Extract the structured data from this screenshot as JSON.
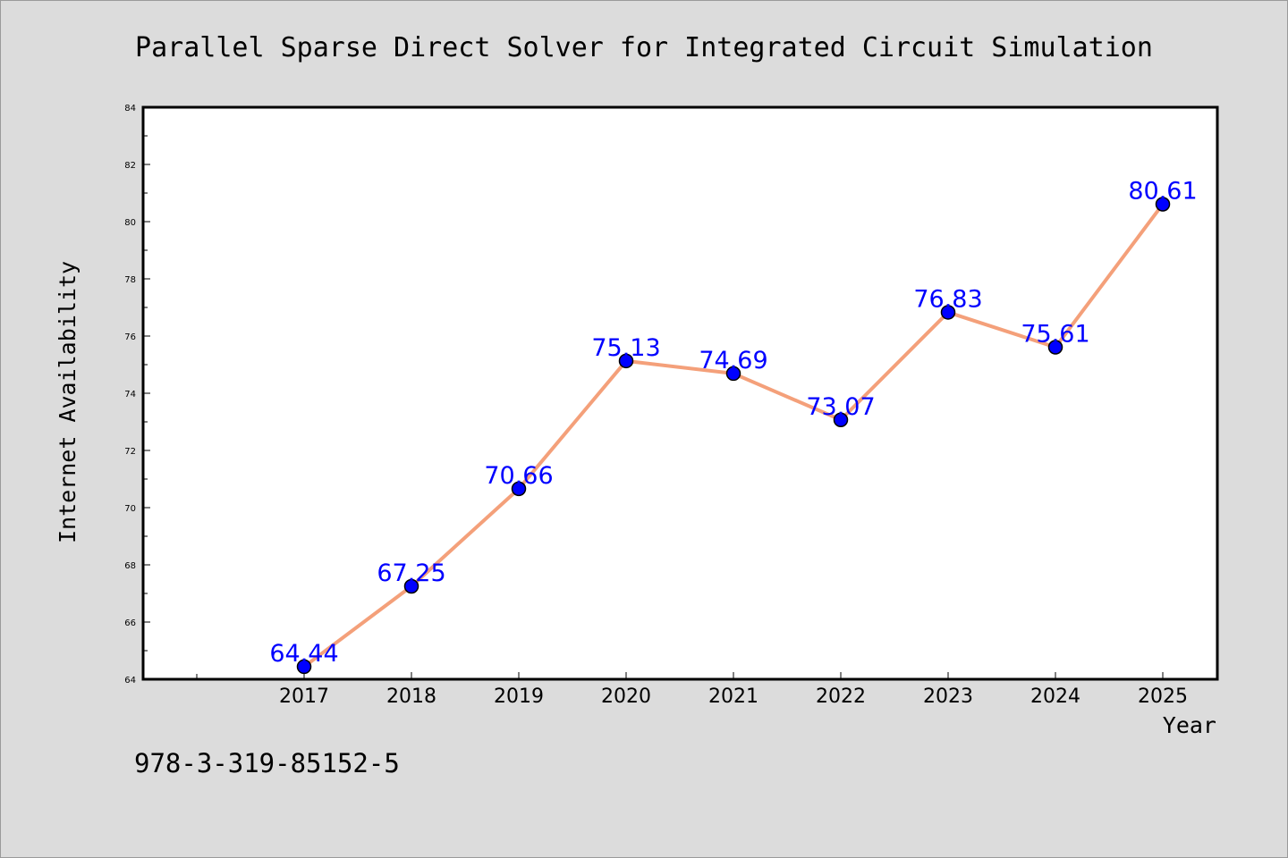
{
  "chart_data": {
    "type": "line",
    "title": "Parallel Sparse Direct Solver for Integrated Circuit Simulation",
    "xlabel": "Year",
    "ylabel": "Internet Availability",
    "categories": [
      "2017",
      "2018",
      "2019",
      "2020",
      "2021",
      "2022",
      "2023",
      "2024",
      "2025"
    ],
    "series": [
      {
        "values": [
          64.44,
          67.25,
          70.66,
          75.13,
          74.69,
          73.07,
          76.83,
          75.61,
          80.61
        ],
        "data_labels": [
          "64.44",
          "67.25",
          "70.66",
          "75.13",
          "74.69",
          "73.07",
          "76.83",
          "75.61",
          "80.61"
        ],
        "line_color": "#f4a07a",
        "marker_color": "#0000ff"
      }
    ],
    "ylim": [
      64,
      84
    ],
    "yticks": [
      "64",
      "66",
      "68",
      "70",
      "72",
      "74",
      "76",
      "78",
      "80",
      "82",
      "84"
    ],
    "grid": false,
    "legend": "none"
  },
  "footer": {
    "isbn": "978-3-319-85152-5"
  },
  "colors": {
    "background": "#dcdcdc",
    "plot_area": "#ffffff",
    "data_label": "#0000ff"
  }
}
